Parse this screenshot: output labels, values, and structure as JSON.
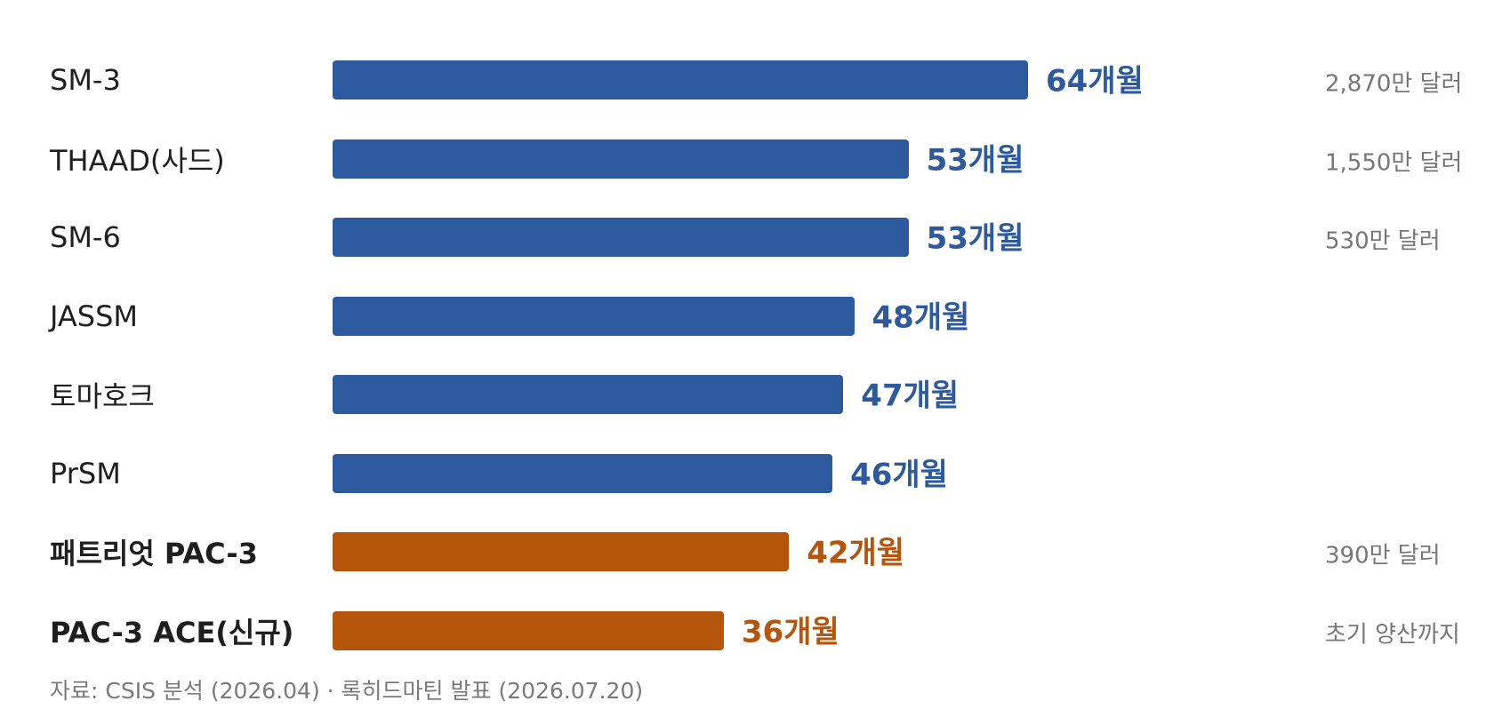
{
  "chart_data": {
    "type": "bar",
    "orientation": "horizontal",
    "unit": "개월",
    "xlim": [
      0,
      64
    ],
    "grid": false,
    "categories": [
      "SM-3",
      "THAAD(사드)",
      "SM-6",
      "JASSM",
      "토마호크",
      "PrSM",
      "패트리엇 PAC-3",
      "PAC-3 ACE(신규)"
    ],
    "values": [
      64,
      53,
      53,
      48,
      47,
      46,
      42,
      36
    ],
    "value_labels": [
      "64개월",
      "53개월",
      "53개월",
      "48개월",
      "47개월",
      "46개월",
      "42개월",
      "36개월"
    ],
    "costs": [
      "2,870만 달러",
      "1,550만 달러",
      "530만 달러",
      "",
      "",
      "",
      "390만 달러",
      "초기 양산까지"
    ],
    "highlight": [
      false,
      false,
      false,
      false,
      false,
      false,
      true,
      true
    ],
    "colors": {
      "default": "#2d5a9e",
      "highlight": "#b5540b"
    },
    "source": "자료: CSIS 분석 (2026.04) · 록히드마틴 발표 (2026.07.20)"
  }
}
